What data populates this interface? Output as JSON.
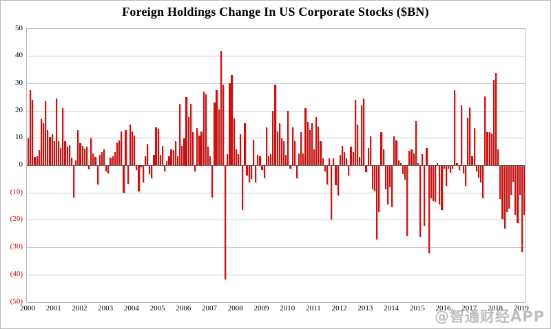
{
  "chart_data": {
    "type": "bar",
    "title": "Foreign Holdings Change In US Corporate Stocks ($BN)",
    "xlabel": "",
    "ylabel": "",
    "unit": "$BN",
    "frequency": "monthly",
    "start": "2000-01",
    "end": "2019-02",
    "ylim": [
      -50,
      50
    ],
    "ytick_interval": 10,
    "grid": true,
    "legend_position": "none",
    "bar_color": "#cc1111",
    "positive_label_color": "#000000",
    "negative_label_color": "#cc0000",
    "y_tick_labels": [
      "50",
      "40",
      "30",
      "20",
      "10",
      "0",
      "(10)",
      "(20)",
      "(30)",
      "(40)",
      "(50)"
    ],
    "y_tick_values": [
      50,
      40,
      30,
      20,
      10,
      0,
      -10,
      -20,
      -30,
      -40,
      -50
    ],
    "x_tick_labels": [
      "2000",
      "2001",
      "2002",
      "2003",
      "2004",
      "2005",
      "2006",
      "2007",
      "2008",
      "2009",
      "2010",
      "2011",
      "2012",
      "2013",
      "2014",
      "2015",
      "2016",
      "2017",
      "2018",
      "2019"
    ],
    "series": [
      {
        "year": 2000,
        "values": [
          10,
          27.7,
          24,
          3.1,
          3.5,
          5.7,
          17,
          15.4,
          23.5,
          13,
          10.5,
          11.5
        ]
      },
      {
        "year": 2001,
        "values": [
          9,
          24.5,
          9,
          6.5,
          21,
          9,
          7,
          7.5,
          3,
          -11.5,
          2,
          13
        ]
      },
      {
        "year": 2002,
        "values": [
          8.3,
          7.3,
          6.1,
          6.9,
          -1.3,
          9.9,
          4.5,
          3.1,
          -6.9,
          3.9,
          4.8,
          6
        ]
      },
      {
        "year": 2003,
        "values": [
          -2,
          -2.8,
          3,
          3.3,
          5,
          8.5,
          9.3,
          12.4,
          -9.7,
          13,
          -6.5,
          14.9
        ]
      },
      {
        "year": 2004,
        "values": [
          12.4,
          11,
          -1.5,
          -9.4,
          -0.5,
          -6,
          3.5,
          8,
          -3,
          -4.5,
          3.8,
          14
        ]
      },
      {
        "year": 2005,
        "values": [
          13.5,
          3.9,
          7.3,
          -1.9,
          1.6,
          3.5,
          6,
          5.6,
          8.9,
          3.5,
          22.6,
          7.3
        ]
      },
      {
        "year": 2006,
        "values": [
          10,
          25,
          17.8,
          22.5,
          12.2,
          -1.9,
          13.7,
          11,
          12.5,
          27,
          26,
          7
        ]
      },
      {
        "year": 2007,
        "values": [
          3.5,
          -11.5,
          23,
          27.5,
          20.5,
          42,
          29.5,
          -41.5,
          4.2,
          30,
          33,
          17.3
        ]
      },
      {
        "year": 2008,
        "values": [
          5.8,
          4.2,
          11.4,
          -16,
          15.6,
          -3.6,
          -6.1,
          -4.8,
          9.5,
          -6.1,
          3.9,
          3.5
        ]
      },
      {
        "year": 2009,
        "values": [
          -1.5,
          -4.6,
          13.9,
          3.5,
          4.2,
          20,
          29.5,
          12.5,
          15.4,
          10,
          8.9,
          3.9
        ]
      },
      {
        "year": 2010,
        "values": [
          20,
          -1.1,
          13.9,
          8.9,
          -4.6,
          4.3,
          12.3,
          4.5,
          21,
          16,
          12.9,
          15.4
        ]
      },
      {
        "year": 2011,
        "values": [
          5.8,
          17.7,
          14.3,
          8.9,
          2.7,
          -1.9,
          -6.9,
          2.7,
          -19.6,
          2.7,
          -7.1,
          -10.9
        ]
      },
      {
        "year": 2012,
        "values": [
          4,
          7.3,
          4.8,
          2.6,
          -3.6,
          7,
          4.8,
          24,
          15,
          3.2,
          22,
          24.6
        ]
      },
      {
        "year": 2013,
        "values": [
          -2.3,
          6.5,
          10.8,
          -8.6,
          -9.4,
          -27,
          -16.9,
          12.3,
          6,
          -8.6,
          -14,
          -7.8
        ]
      },
      {
        "year": 2014,
        "values": [
          -15.1,
          10.8,
          9.3,
          2,
          1,
          -3,
          -5,
          -25.7,
          5.4,
          6,
          4.3,
          16.3
        ]
      },
      {
        "year": 2015,
        "values": [
          1,
          -26,
          4.1,
          -21.9,
          6.4,
          -31.9,
          -11.9,
          -12.8,
          -13.2,
          1,
          -14,
          -16.1
        ]
      },
      {
        "year": 2016,
        "values": [
          -1.1,
          -7.3,
          -1.1,
          -2.5,
          -1,
          27.7,
          1,
          -1.5,
          22,
          -2.8,
          -7.3,
          17.5
        ]
      },
      {
        "year": 2017,
        "values": [
          21.3,
          3.3,
          13.8,
          -1.9,
          -4.4,
          -6.1,
          -11.9,
          25.3,
          12.3,
          12.3,
          11.8,
          31.4
        ]
      },
      {
        "year": 2018,
        "values": [
          34,
          6,
          -12,
          -19.5,
          -23,
          -17,
          -15.5,
          -10.5,
          -5.7,
          -17.9,
          -21,
          -10.7
        ]
      },
      {
        "year": 2019,
        "values": [
          -31.5,
          -18
        ]
      }
    ]
  },
  "watermark": {
    "text": "@智通财经APP"
  }
}
